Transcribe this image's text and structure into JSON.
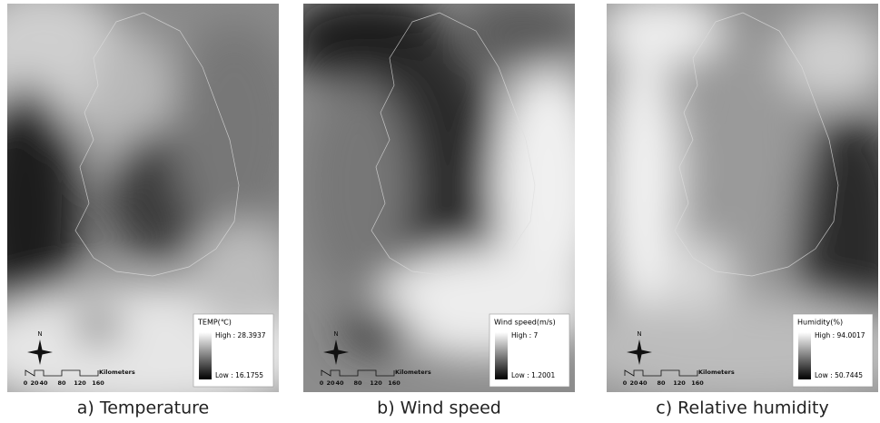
{
  "panels": [
    {
      "caption": "a) Temperature",
      "legend": {
        "title": "TEMP(℃)",
        "high": "High : 28.3937",
        "low": "Low : 16.1755"
      },
      "north": "N",
      "scale": {
        "labels": [
          "0",
          "20",
          "40",
          "80",
          "120",
          "160"
        ],
        "unit": "Kilometers"
      }
    },
    {
      "caption": "b) Wind speed",
      "legend": {
        "title": "Wind speed(m/s)",
        "high": "High : 7",
        "low": "Low : 1.2001"
      },
      "north": "N",
      "scale": {
        "labels": [
          "0",
          "20",
          "40",
          "80",
          "120",
          "160"
        ],
        "unit": "Kilometers"
      }
    },
    {
      "caption": "c) Relative humidity",
      "legend": {
        "title": "Humidity(%)",
        "high": "High : 94.0017",
        "low": "Low : 50.7445"
      },
      "north": "N",
      "scale": {
        "labels": [
          "0",
          "20",
          "40",
          "80",
          "120",
          "160"
        ],
        "unit": "Kilometers"
      }
    }
  ]
}
